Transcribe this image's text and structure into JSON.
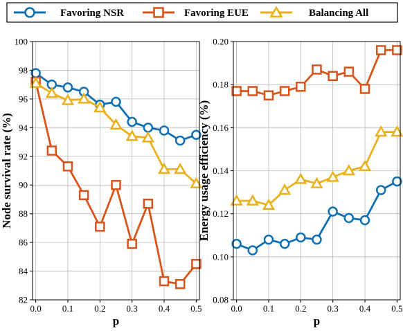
{
  "legend": [
    {
      "name": "Favoring NSR",
      "color": "#0f6fb3",
      "marker": "circle"
    },
    {
      "name": "Favoring EUE",
      "color": "#d9541a",
      "marker": "square"
    },
    {
      "name": "Balancing All",
      "color": "#ebb11c",
      "marker": "triangle"
    }
  ],
  "chart_data": [
    {
      "type": "line",
      "title": "",
      "xlabel": "p",
      "ylabel": "Node survival rate (%)",
      "xlim": [
        -0.01,
        0.51
      ],
      "ylim": [
        82,
        100
      ],
      "x": [
        0.0,
        0.05,
        0.1,
        0.15,
        0.2,
        0.25,
        0.3,
        0.35,
        0.4,
        0.45,
        0.5
      ],
      "xticks": [
        "0.0",
        "0.1",
        "0.2",
        "0.3",
        "0.4",
        "0.5"
      ],
      "yticks": [
        "82",
        "84",
        "86",
        "88",
        "90",
        "92",
        "94",
        "96",
        "98",
        "100"
      ],
      "grid": true,
      "series": [
        {
          "name": "Favoring NSR",
          "values": [
            97.8,
            97.0,
            96.8,
            96.5,
            95.6,
            95.8,
            94.4,
            94.0,
            93.8,
            93.1,
            93.5
          ]
        },
        {
          "name": "Favoring EUE",
          "values": [
            97.2,
            92.4,
            91.3,
            89.3,
            87.1,
            90.0,
            85.9,
            88.7,
            83.3,
            83.1,
            84.5
          ]
        },
        {
          "name": "Balancing All",
          "values": [
            97.1,
            96.4,
            95.9,
            96.0,
            95.4,
            94.2,
            93.4,
            93.3,
            91.1,
            91.1,
            90.1
          ]
        }
      ]
    },
    {
      "type": "line",
      "title": "",
      "xlabel": "p",
      "ylabel": "Energy usage efficiency (%)",
      "xlim": [
        -0.01,
        0.51
      ],
      "ylim": [
        0.08,
        0.2
      ],
      "x": [
        0.0,
        0.05,
        0.1,
        0.15,
        0.2,
        0.25,
        0.3,
        0.35,
        0.4,
        0.45,
        0.5
      ],
      "xticks": [
        "0.0",
        "0.1",
        "0.2",
        "0.3",
        "0.4",
        "0.5"
      ],
      "yticks": [
        "0.08",
        "0.10",
        "0.12",
        "0.14",
        "0.16",
        "0.18",
        "0.20"
      ],
      "grid": true,
      "series": [
        {
          "name": "Favoring NSR",
          "values": [
            0.106,
            0.103,
            0.108,
            0.106,
            0.109,
            0.108,
            0.121,
            0.118,
            0.117,
            0.131,
            0.135
          ]
        },
        {
          "name": "Favoring EUE",
          "values": [
            0.177,
            0.177,
            0.175,
            0.177,
            0.179,
            0.187,
            0.184,
            0.186,
            0.178,
            0.196,
            0.196
          ]
        },
        {
          "name": "Balancing All",
          "values": [
            0.126,
            0.126,
            0.124,
            0.131,
            0.136,
            0.134,
            0.137,
            0.14,
            0.142,
            0.158,
            0.158
          ]
        }
      ]
    }
  ]
}
